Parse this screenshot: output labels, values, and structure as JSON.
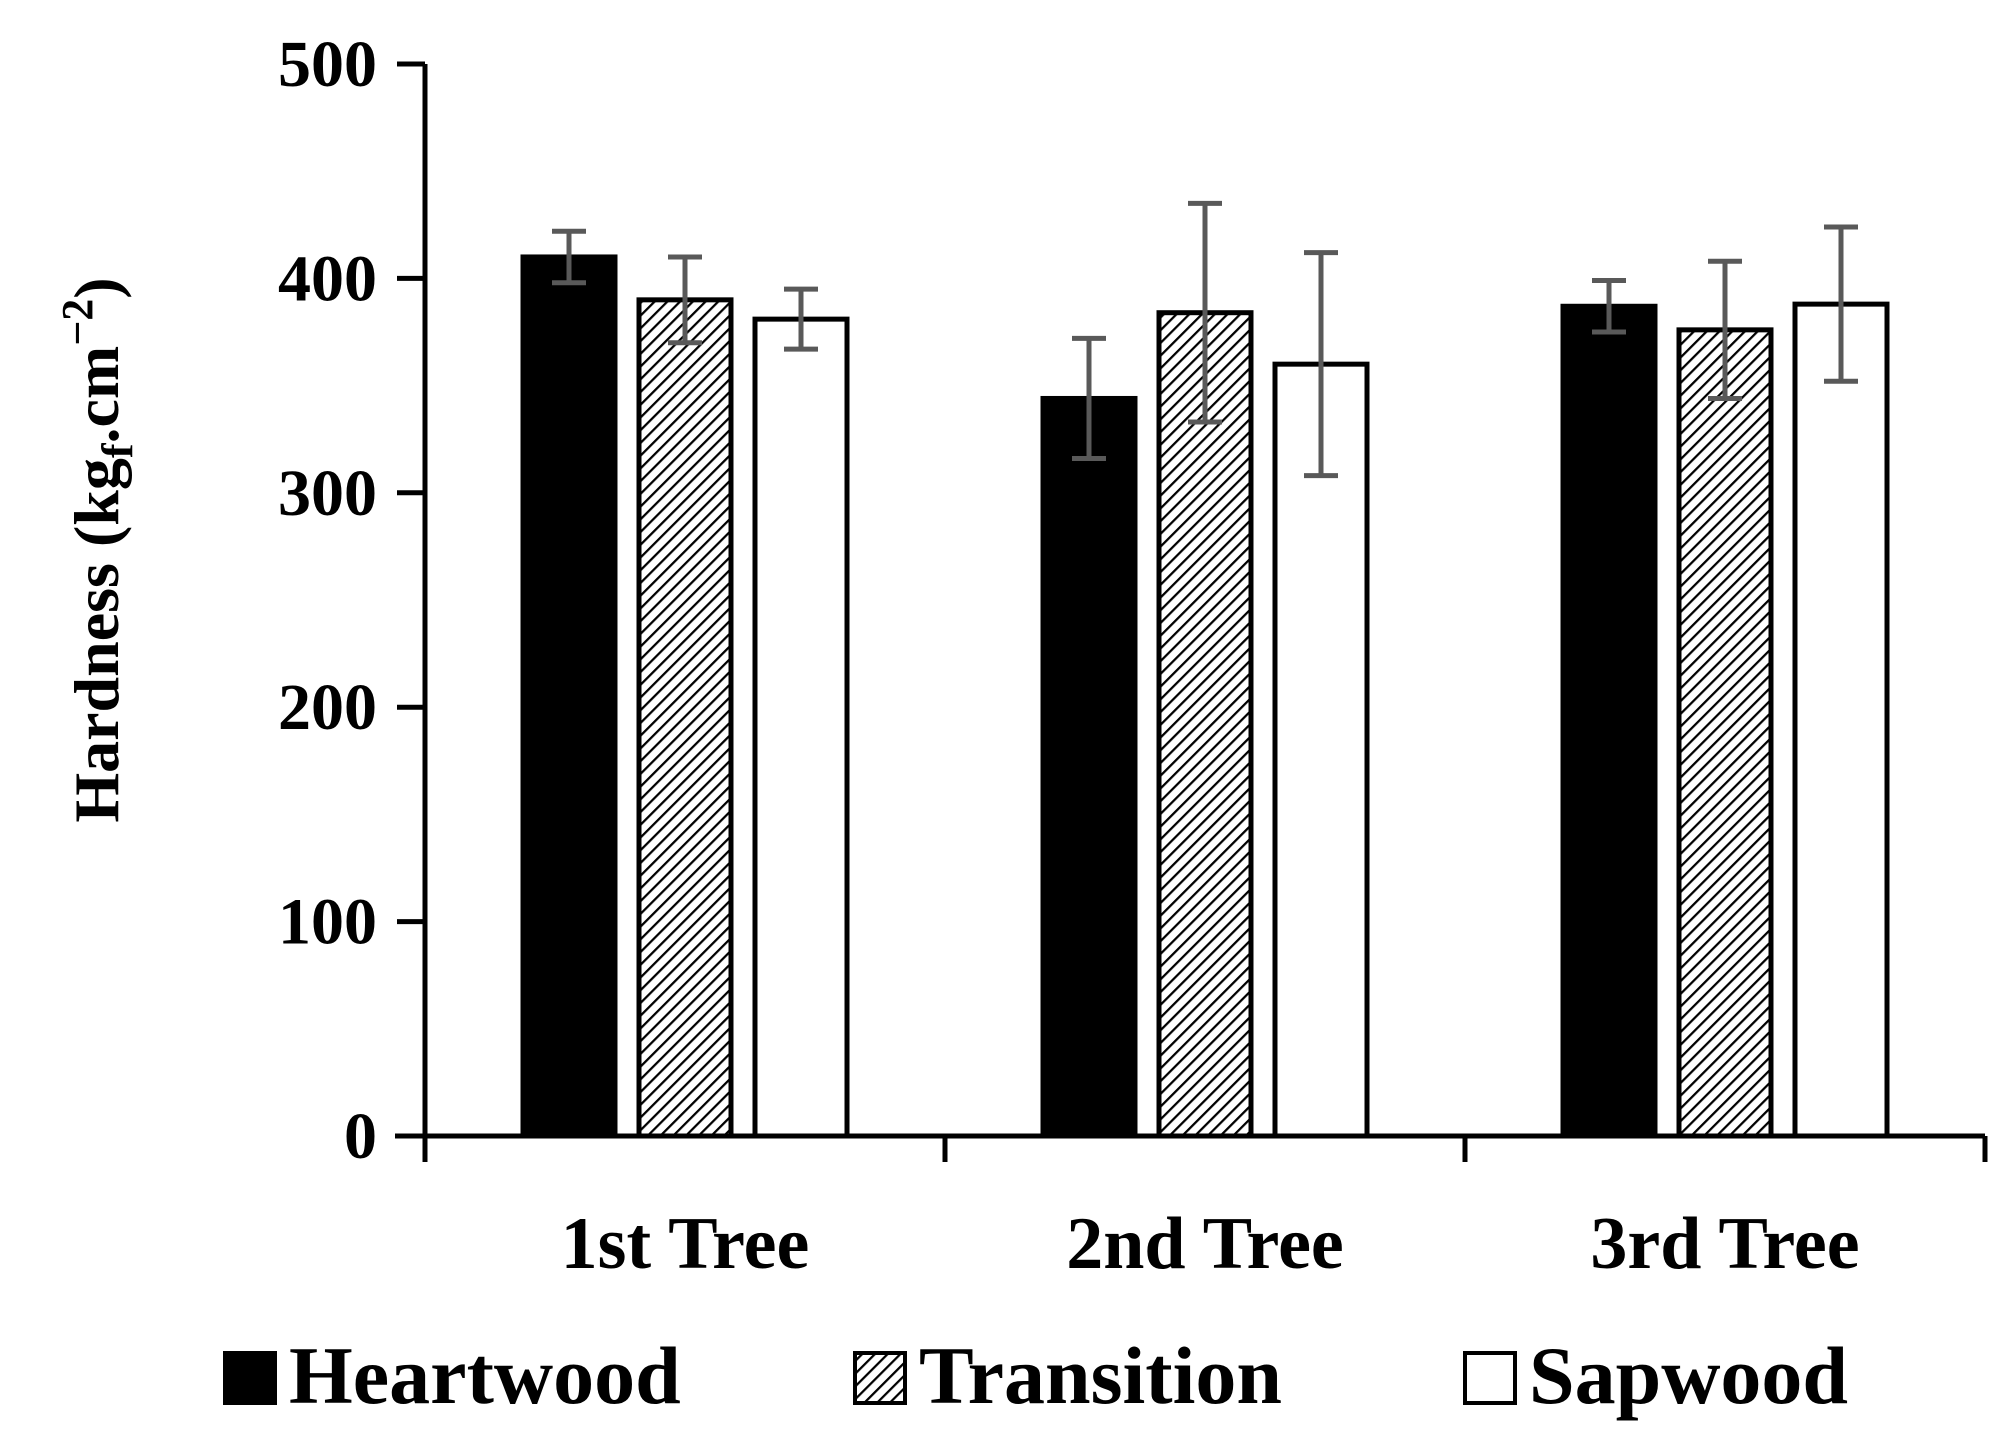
{
  "chart_data": {
    "type": "bar",
    "title": "",
    "xlabel": "",
    "ylabel": {
      "base": "Hardness (kg",
      "sub": "f",
      "mid": ".cm",
      "sup": "−2",
      "end": ")"
    },
    "ylim": [
      0,
      500
    ],
    "yticks": [
      "0",
      "100",
      "200",
      "300",
      "400",
      "500"
    ],
    "categories": [
      "1st Tree",
      "2nd Tree",
      "3rd Tree"
    ],
    "series": [
      {
        "name": "Heartwood",
        "fill": "solid",
        "color": "#000000",
        "values": [
          410,
          344,
          387
        ],
        "errors": [
          12,
          28,
          12
        ]
      },
      {
        "name": "Transition",
        "fill": "hatched",
        "color": "#000000",
        "values": [
          390,
          384,
          376
        ],
        "errors": [
          20,
          51,
          32
        ]
      },
      {
        "name": "Sapwood",
        "fill": "none",
        "color": "#000000",
        "values": [
          381,
          360,
          388
        ],
        "errors": [
          14,
          52,
          36
        ]
      }
    ],
    "error_bar_color": "#595959",
    "grid": false,
    "legend_position": "bottom"
  }
}
